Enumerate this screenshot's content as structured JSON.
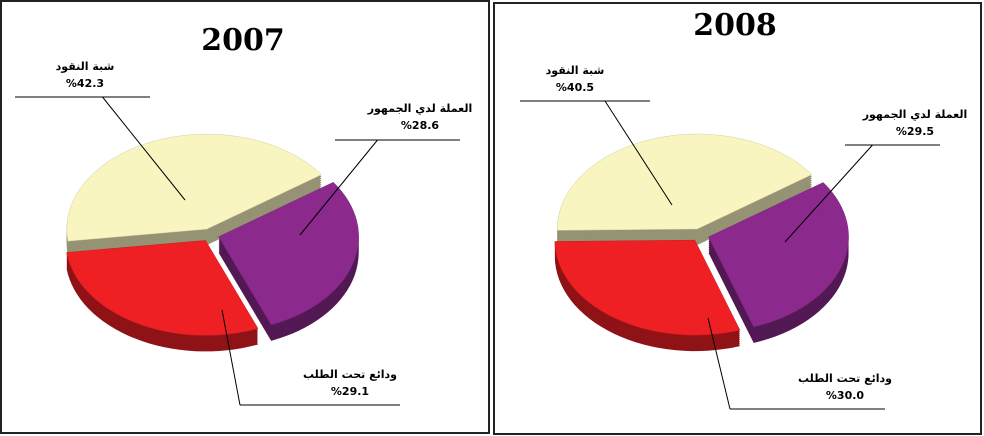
{
  "chart_data": [
    {
      "type": "pie",
      "title": "2007",
      "categories": [
        "شبة النقود",
        "العملة لدي الجمهور",
        "ودائع تحت الطلب"
      ],
      "values": [
        42.3,
        28.6,
        29.1
      ],
      "value_labels": [
        "%42.3",
        "%28.6",
        "%29.1"
      ],
      "colors": [
        "#f8f5c0",
        "#8b2a8c",
        "#ee2024"
      ]
    },
    {
      "type": "pie",
      "title": "2008",
      "categories": [
        "شبة النقود",
        "العملة لدي الجمهور",
        "ودائع تحت الطلب"
      ],
      "values": [
        40.5,
        29.5,
        30.0
      ],
      "value_labels": [
        "%40.5",
        "%29.5",
        "%30.0"
      ],
      "colors": [
        "#f8f5c0",
        "#8b2a8c",
        "#ee2024"
      ]
    }
  ]
}
